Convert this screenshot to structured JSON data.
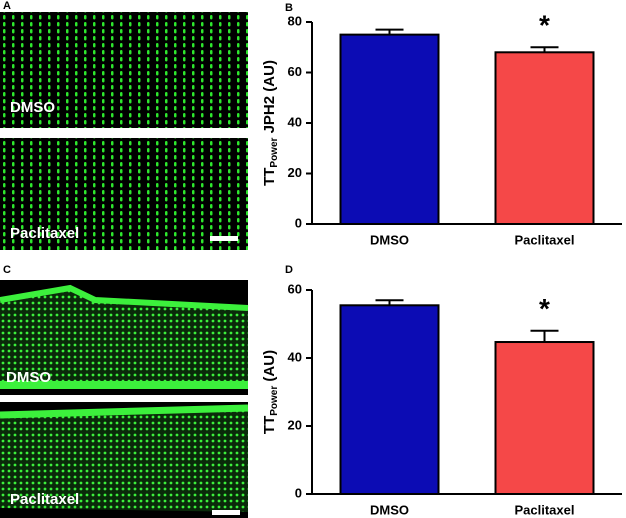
{
  "images": [
    {
      "panel": "A",
      "labels": [
        "DMSO",
        "Paclitaxel"
      ]
    },
    {
      "panel": "C",
      "labels": [
        "DMSO",
        "Paclitaxel"
      ]
    }
  ],
  "chart_data": [
    {
      "panel": "B",
      "type": "bar",
      "categories": [
        "DMSO",
        "Paclitaxel"
      ],
      "values": [
        75,
        68
      ],
      "errors": [
        2,
        2
      ],
      "colors": [
        "#0c0cb4",
        "#f54848"
      ],
      "ylim": [
        0,
        80
      ],
      "yticks": [
        0,
        20,
        40,
        60,
        80
      ],
      "ylabel": {
        "base": "TT",
        "subscript": "Power",
        "rest": " JPH2 (AU)"
      },
      "annotation": "*"
    },
    {
      "panel": "D",
      "type": "bar",
      "categories": [
        "DMSO",
        "Paclitaxel"
      ],
      "values": [
        55.5,
        44.7
      ],
      "errors": [
        1.5,
        3.3
      ],
      "colors": [
        "#0c0cb4",
        "#f54848"
      ],
      "ylim": [
        0,
        60
      ],
      "yticks": [
        0,
        20,
        40,
        60
      ],
      "ylabel": {
        "base": "TT",
        "subscript": "Power",
        "rest": " (AU)"
      },
      "annotation": "*"
    }
  ]
}
